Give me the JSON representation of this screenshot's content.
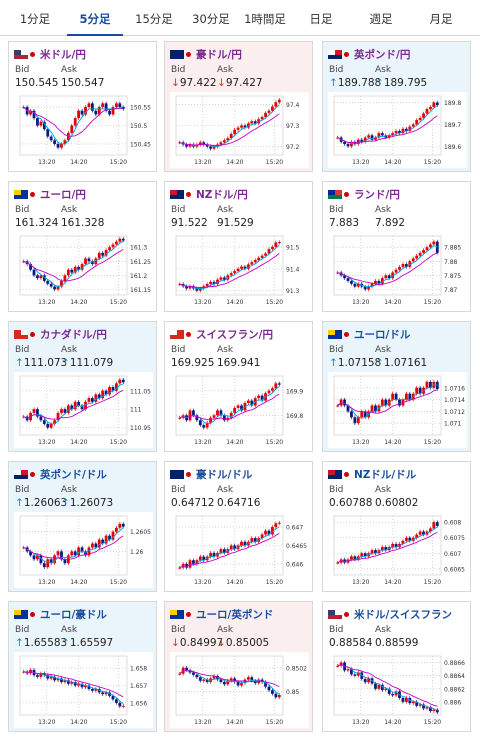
{
  "tabs": [
    {
      "label": "1分足",
      "active": false
    },
    {
      "label": "5分足",
      "active": true
    },
    {
      "label": "15分足",
      "active": false
    },
    {
      "label": "30分足",
      "active": false
    },
    {
      "label": "1時間足",
      "active": false
    },
    {
      "label": "日足",
      "active": false
    },
    {
      "label": "週足",
      "active": false
    },
    {
      "label": "月足",
      "active": false
    }
  ],
  "labels": {
    "bid": "Bid",
    "ask": "Ask"
  },
  "colors": {
    "up_arrow": "#1e88c9",
    "down_arrow": "#d63232",
    "candle_up": "#e60000",
    "candle_down": "#0a1a80",
    "ma_short": "#00a0e0",
    "ma_long": "#c800c8"
  },
  "panels": [
    {
      "pair": "米ドル/円",
      "flag": "us-jp",
      "trend": "neutral",
      "bid": "150.545",
      "ask": "150.547",
      "chart_data": {
        "type": "candlestick",
        "x_ticks": [
          "13:20",
          "14:20",
          "15:20"
        ],
        "y_ticks": [
          "150.55",
          "150.5",
          "150.45"
        ],
        "ylim": [
          150.42,
          150.58
        ],
        "closes": [
          150.55,
          150.53,
          150.54,
          150.52,
          150.5,
          150.51,
          150.49,
          150.47,
          150.46,
          150.45,
          150.44,
          150.45,
          150.46,
          150.48,
          150.5,
          150.52,
          150.54,
          150.53,
          150.55,
          150.56,
          150.54,
          150.53,
          150.55,
          150.56,
          150.54,
          150.53,
          150.55,
          150.56,
          150.55,
          150.545
        ]
      }
    },
    {
      "pair": "豪ドル/円",
      "flag": "au-jp",
      "trend": "down",
      "bid": "97.422",
      "ask": "97.427",
      "chart_data": {
        "type": "candlestick",
        "x_ticks": [
          "13:20",
          "14:20",
          "15:20"
        ],
        "y_ticks": [
          "97.4",
          "97.3",
          "97.2"
        ],
        "ylim": [
          97.16,
          97.44
        ],
        "closes": [
          97.22,
          97.21,
          97.2,
          97.21,
          97.2,
          97.21,
          97.22,
          97.21,
          97.2,
          97.19,
          97.2,
          97.21,
          97.22,
          97.23,
          97.24,
          97.26,
          97.28,
          97.29,
          97.3,
          97.29,
          97.31,
          97.32,
          97.31,
          97.33,
          97.34,
          97.36,
          97.37,
          97.39,
          97.41,
          97.422
        ]
      }
    },
    {
      "pair": "英ポンド/円",
      "flag": "gb-jp",
      "trend": "up",
      "bid": "189.788",
      "ask": "189.795",
      "chart_data": {
        "type": "candlestick",
        "x_ticks": [
          "13:20",
          "14:20",
          "15:20"
        ],
        "y_ticks": [
          "189.8",
          "189.7",
          "189.6"
        ],
        "ylim": [
          189.56,
          189.83
        ],
        "closes": [
          189.64,
          189.62,
          189.61,
          189.6,
          189.62,
          189.61,
          189.63,
          189.62,
          189.64,
          189.65,
          189.63,
          189.64,
          189.66,
          189.65,
          189.64,
          189.65,
          189.66,
          189.67,
          189.66,
          189.68,
          189.67,
          189.69,
          189.7,
          189.72,
          189.73,
          189.75,
          189.77,
          189.78,
          189.8,
          189.788
        ]
      }
    },
    {
      "pair": "ユーロ/円",
      "flag": "eu-jp",
      "trend": "neutral",
      "bid": "161.324",
      "ask": "161.328",
      "chart_data": {
        "type": "candlestick",
        "x_ticks": [
          "13:20",
          "14:20",
          "15:20"
        ],
        "y_ticks": [
          "161.3",
          "161.25",
          "161.2",
          "161.15"
        ],
        "ylim": [
          161.13,
          161.34
        ],
        "closes": [
          161.25,
          161.24,
          161.22,
          161.2,
          161.19,
          161.2,
          161.18,
          161.17,
          161.16,
          161.15,
          161.16,
          161.18,
          161.2,
          161.22,
          161.21,
          161.23,
          161.22,
          161.24,
          161.26,
          161.25,
          161.24,
          161.26,
          161.28,
          161.27,
          161.29,
          161.3,
          161.31,
          161.32,
          161.33,
          161.324
        ]
      }
    },
    {
      "pair": "NZドル/円",
      "flag": "nz-jp",
      "trend": "neutral",
      "bid": "91.522",
      "ask": "91.529",
      "chart_data": {
        "type": "candlestick",
        "x_ticks": [
          "13:20",
          "14:20",
          "15:20"
        ],
        "y_ticks": [
          "91.5",
          "91.4",
          "91.3"
        ],
        "ylim": [
          91.28,
          91.55
        ],
        "closes": [
          91.33,
          91.32,
          91.31,
          91.32,
          91.31,
          91.3,
          91.31,
          91.32,
          91.33,
          91.34,
          91.33,
          91.35,
          91.36,
          91.35,
          91.37,
          91.38,
          91.39,
          91.4,
          91.41,
          91.4,
          91.42,
          91.43,
          91.44,
          91.45,
          91.46,
          91.47,
          91.49,
          91.5,
          91.52,
          91.522
        ]
      }
    },
    {
      "pair": "ランド/円",
      "flag": "za-jp",
      "trend": "neutral",
      "bid": "7.883",
      "ask": "7.892",
      "chart_data": {
        "type": "candlestick",
        "x_ticks": [
          "13:20",
          "14:20",
          "15:20"
        ],
        "y_ticks": [
          "7.885",
          "7.88",
          "7.875",
          "7.87"
        ],
        "ylim": [
          7.868,
          7.889
        ],
        "closes": [
          7.876,
          7.875,
          7.874,
          7.873,
          7.872,
          7.871,
          7.872,
          7.871,
          7.87,
          7.871,
          7.872,
          7.873,
          7.872,
          7.874,
          7.875,
          7.874,
          7.876,
          7.877,
          7.878,
          7.879,
          7.878,
          7.88,
          7.881,
          7.882,
          7.883,
          7.884,
          7.885,
          7.886,
          7.887,
          7.883
        ]
      }
    },
    {
      "pair": "カナダドル/円",
      "flag": "ca-jp",
      "trend": "up",
      "bid": "111.073",
      "ask": "111.079",
      "chart_data": {
        "type": "candlestick",
        "x_ticks": [
          "13:20",
          "14:20",
          "15:20"
        ],
        "y_ticks": [
          "111.05",
          "111",
          "110.95"
        ],
        "ylim": [
          110.93,
          111.09
        ],
        "closes": [
          110.98,
          110.97,
          110.99,
          111.0,
          110.98,
          110.97,
          110.96,
          110.95,
          110.96,
          110.97,
          110.99,
          111.0,
          110.99,
          111.01,
          111.0,
          111.02,
          111.01,
          111.0,
          111.02,
          111.03,
          111.02,
          111.04,
          111.03,
          111.05,
          111.04,
          111.06,
          111.05,
          111.07,
          111.08,
          111.073
        ]
      }
    },
    {
      "pair": "スイスフラン/円",
      "flag": "ch-jp",
      "trend": "neutral",
      "bid": "169.925",
      "ask": "169.941",
      "chart_data": {
        "type": "candlestick",
        "x_ticks": [
          "13:20",
          "14:20",
          "15:20"
        ],
        "y_ticks": [
          "169.9",
          "169.8"
        ],
        "ylim": [
          169.72,
          169.96
        ],
        "closes": [
          169.79,
          169.8,
          169.78,
          169.82,
          169.8,
          169.78,
          169.76,
          169.75,
          169.77,
          169.79,
          169.8,
          169.82,
          169.8,
          169.78,
          169.79,
          169.81,
          169.83,
          169.84,
          169.82,
          169.85,
          169.86,
          169.84,
          169.87,
          169.88,
          169.86,
          169.89,
          169.9,
          169.91,
          169.93,
          169.925
        ]
      }
    },
    {
      "pair": "ユーロ/ドル",
      "flag": "eu-us",
      "trend": "up",
      "bid": "1.07158",
      "ask": "1.07161",
      "chart_data": {
        "type": "candlestick",
        "x_ticks": [
          "13:20",
          "14:20",
          "15:20"
        ],
        "y_ticks": [
          "1.0716",
          "1.0714",
          "1.0712",
          "1.071"
        ],
        "ylim": [
          1.0708,
          1.0718
        ],
        "closes": [
          1.0713,
          1.0714,
          1.0713,
          1.0712,
          1.0711,
          1.071,
          1.0711,
          1.0712,
          1.0711,
          1.0712,
          1.0713,
          1.0712,
          1.0713,
          1.0714,
          1.0713,
          1.0714,
          1.0715,
          1.0714,
          1.0713,
          1.0714,
          1.0715,
          1.0714,
          1.0715,
          1.0716,
          1.0715,
          1.0716,
          1.0717,
          1.0716,
          1.0717,
          1.07158
        ]
      }
    },
    {
      "pair": "英ポンド/ドル",
      "flag": "gb-us",
      "trend": "up",
      "bid": "1.26063",
      "ask": "1.26073",
      "chart_data": {
        "type": "candlestick",
        "x_ticks": [
          "13:20",
          "14:20",
          "15:20"
        ],
        "y_ticks": [
          "1.2605",
          "1.26"
        ],
        "ylim": [
          1.2594,
          1.2609
        ],
        "closes": [
          1.2601,
          1.26,
          1.2599,
          1.2598,
          1.2599,
          1.2597,
          1.2596,
          1.2598,
          1.2597,
          1.2599,
          1.26,
          1.2598,
          1.2597,
          1.2599,
          1.26,
          1.2599,
          1.2601,
          1.26,
          1.2599,
          1.2601,
          1.2602,
          1.2601,
          1.2603,
          1.2602,
          1.2604,
          1.2603,
          1.2605,
          1.2606,
          1.2607,
          1.26063
        ]
      }
    },
    {
      "pair": "豪ドル/ドル",
      "flag": "au-us",
      "trend": "neutral",
      "bid": "0.64712",
      "ask": "0.64716",
      "chart_data": {
        "type": "candlestick",
        "x_ticks": [
          "13:20",
          "14:20",
          "15:20"
        ],
        "y_ticks": [
          "0.647",
          "0.6465",
          "0.646"
        ],
        "ylim": [
          0.6457,
          0.6473
        ],
        "closes": [
          0.6459,
          0.646,
          0.6459,
          0.6461,
          0.646,
          0.6461,
          0.6462,
          0.6461,
          0.6462,
          0.6463,
          0.6462,
          0.6463,
          0.6464,
          0.6463,
          0.6464,
          0.6465,
          0.6464,
          0.6465,
          0.6466,
          0.6465,
          0.6466,
          0.6467,
          0.6466,
          0.6467,
          0.6468,
          0.6469,
          0.6468,
          0.647,
          0.6471,
          0.64712
        ]
      }
    },
    {
      "pair": "NZドル/ドル",
      "flag": "nz-us",
      "trend": "neutral",
      "bid": "0.60788",
      "ask": "0.60802",
      "chart_data": {
        "type": "candlestick",
        "x_ticks": [
          "13:20",
          "14:20",
          "15:20"
        ],
        "y_ticks": [
          "0.608",
          "0.6075",
          "0.607",
          "0.6065"
        ],
        "ylim": [
          0.6063,
          0.6082
        ],
        "closes": [
          0.6067,
          0.6068,
          0.6067,
          0.6068,
          0.6069,
          0.6068,
          0.6069,
          0.607,
          0.6069,
          0.607,
          0.6071,
          0.607,
          0.6071,
          0.6072,
          0.6071,
          0.6072,
          0.6073,
          0.6072,
          0.6073,
          0.6074,
          0.6075,
          0.6074,
          0.6075,
          0.6076,
          0.6077,
          0.6076,
          0.6077,
          0.6078,
          0.608,
          0.60788
        ]
      }
    },
    {
      "pair": "ユーロ/豪ドル",
      "flag": "eu-au",
      "trend": "up",
      "bid": "1.65583",
      "ask": "1.65597",
      "chart_data": {
        "type": "candlestick",
        "x_ticks": [
          "13:20",
          "14:20",
          "15:20"
        ],
        "y_ticks": [
          "1.658",
          "1.657",
          "1.656"
        ],
        "ylim": [
          1.6553,
          1.6587
        ],
        "closes": [
          1.6578,
          1.6577,
          1.6579,
          1.6576,
          1.6575,
          1.6577,
          1.6576,
          1.6574,
          1.6575,
          1.6573,
          1.6574,
          1.6572,
          1.6573,
          1.6571,
          1.6572,
          1.657,
          1.6571,
          1.6569,
          1.657,
          1.6568,
          1.6567,
          1.6568,
          1.6566,
          1.6565,
          1.6566,
          1.6564,
          1.6562,
          1.656,
          1.6558,
          1.65583
        ]
      }
    },
    {
      "pair": "ユーロ/英ポンド",
      "flag": "eu-gb",
      "trend": "down",
      "bid": "0.84997",
      "ask": "0.85005",
      "chart_data": {
        "type": "candlestick",
        "x_ticks": [
          "13:20",
          "14:20",
          "15:20"
        ],
        "y_ticks": [
          "0.8502",
          "0.85"
        ],
        "ylim": [
          0.8498,
          0.8503
        ],
        "closes": [
          0.85015,
          0.8502,
          0.85018,
          0.85016,
          0.85014,
          0.85012,
          0.85009,
          0.8501,
          0.85008,
          0.85011,
          0.85013,
          0.8501,
          0.85008,
          0.85006,
          0.85009,
          0.85011,
          0.85008,
          0.85005,
          0.85007,
          0.8501,
          0.85012,
          0.85009,
          0.85007,
          0.8501,
          0.85008,
          0.85004,
          0.85001,
          0.84998,
          0.84995,
          0.84997
        ]
      }
    },
    {
      "pair": "米ドル/スイスフラン",
      "flag": "us-ch",
      "trend": "neutral",
      "bid": "0.88584",
      "ask": "0.88599",
      "chart_data": {
        "type": "candlestick",
        "x_ticks": [
          "13:20",
          "14:20",
          "15:20"
        ],
        "y_ticks": [
          "0.8866",
          "0.8864",
          "0.8862",
          "0.886"
        ],
        "ylim": [
          0.8858,
          0.8867
        ],
        "closes": [
          0.88655,
          0.8866,
          0.88648,
          0.8865,
          0.88642,
          0.8864,
          0.88645,
          0.88635,
          0.8863,
          0.88636,
          0.88628,
          0.8862,
          0.88626,
          0.88618,
          0.8862,
          0.88612,
          0.8861,
          0.88616,
          0.88606,
          0.886,
          0.88606,
          0.88598,
          0.886,
          0.88594,
          0.88596,
          0.8859,
          0.88592,
          0.88586,
          0.88588,
          0.88584
        ]
      }
    }
  ]
}
